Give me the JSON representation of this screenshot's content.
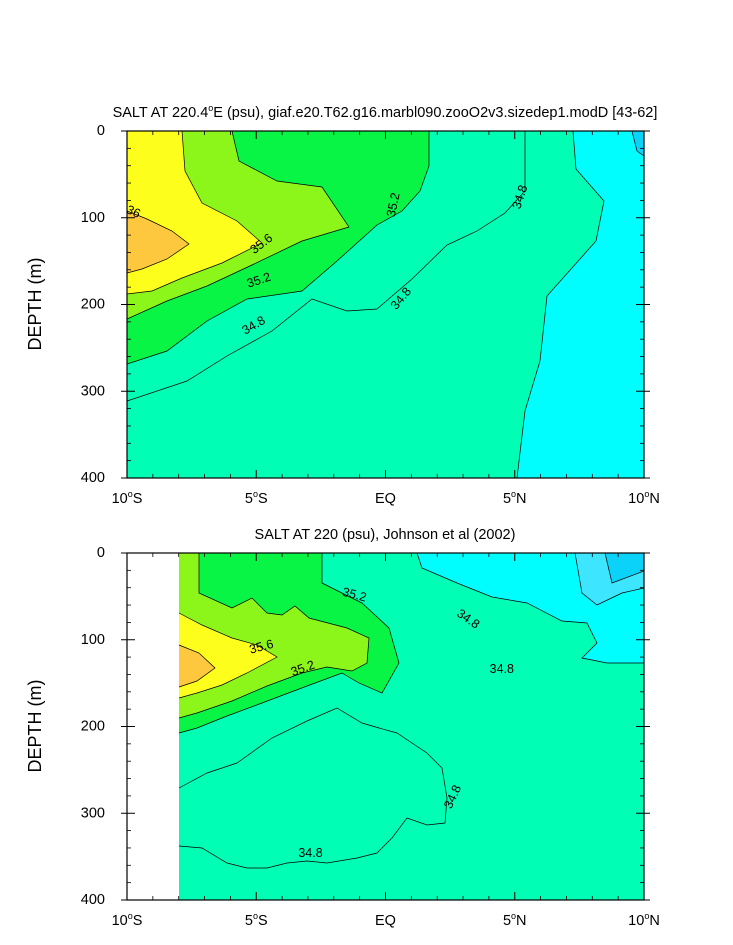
{
  "colors": {
    "c36plus": "#fdc83d",
    "c356_36": "#fefe1d",
    "c352_356": "#8cf51a",
    "c348_352": "#09f546",
    "c344_348": "#00feb4",
    "c_low": "#00fefe",
    "c_lowest": "#3de6fe",
    "c_min": "#0ad2f8"
  },
  "chart_data": [
    {
      "type": "contour",
      "title_prefix": "SALT AT 220.4",
      "title_sup": "o",
      "title_suffix": "E (psu), giaf.e20.T62.g16.marbl090.zooO2v3.sizedep1.modD [43-62]",
      "ylabel": "DEPTH (m)",
      "xlim": [
        -10,
        10
      ],
      "ylim": [
        0,
        400
      ],
      "y_inverted": true,
      "x_ticks": [
        {
          "value": -10,
          "num": "10",
          "sup": "o",
          "hem": "S"
        },
        {
          "value": -5,
          "num": "5",
          "sup": "o",
          "hem": "S"
        },
        {
          "value": 0,
          "num": "EQ",
          "sup": "",
          "hem": ""
        },
        {
          "value": 5,
          "num": "5",
          "sup": "o",
          "hem": "N"
        },
        {
          "value": 10,
          "num": "10",
          "sup": "o",
          "hem": "N"
        }
      ],
      "y_ticks": [
        "0",
        "100",
        "200",
        "300",
        "400"
      ],
      "contour_labels": [
        {
          "text": "36",
          "x": -9.75,
          "y": 93,
          "angle": 25
        },
        {
          "text": "35.6",
          "x": -4.8,
          "y": 130,
          "angle": -38
        },
        {
          "text": "35.2",
          "x": -4.9,
          "y": 172,
          "angle": -18
        },
        {
          "text": "35.2",
          "x": 0.3,
          "y": 85,
          "angle": -78
        },
        {
          "text": "34.8",
          "x": -5.1,
          "y": 224,
          "angle": -30
        },
        {
          "text": "34.8",
          "x": 0.6,
          "y": 193,
          "angle": -50
        },
        {
          "text": "34.8",
          "x": 5.2,
          "y": 76,
          "angle": -72
        }
      ]
    },
    {
      "type": "contour",
      "title_prefix": "SALT AT 220 (psu), Johnson et al (2002)",
      "title_sup": "",
      "title_suffix": "",
      "ylabel": "DEPTH (m)",
      "xlim": [
        -10,
        10
      ],
      "ylim": [
        0,
        400
      ],
      "y_inverted": true,
      "x_ticks": [
        {
          "value": -10,
          "num": "10",
          "sup": "o",
          "hem": "S"
        },
        {
          "value": -5,
          "num": "5",
          "sup": "o",
          "hem": "S"
        },
        {
          "value": 0,
          "num": "EQ",
          "sup": "",
          "hem": ""
        },
        {
          "value": 5,
          "num": "5",
          "sup": "o",
          "hem": "N"
        },
        {
          "value": 10,
          "num": "10",
          "sup": "o",
          "hem": "N"
        }
      ],
      "y_ticks": [
        "0",
        "100",
        "200",
        "300",
        "400"
      ],
      "contour_labels": [
        {
          "text": "35.2",
          "x": -1.2,
          "y": 48,
          "angle": 15
        },
        {
          "text": "35.6",
          "x": -4.8,
          "y": 108,
          "angle": -15
        },
        {
          "text": "35.2",
          "x": -3.2,
          "y": 133,
          "angle": -20
        },
        {
          "text": "34.8",
          "x": 3.2,
          "y": 76,
          "angle": 35
        },
        {
          "text": "34.8",
          "x": 4.5,
          "y": 134,
          "angle": 0
        },
        {
          "text": "34.8",
          "x": 2.6,
          "y": 281,
          "angle": -65
        },
        {
          "text": "34.8",
          "x": -2.9,
          "y": 346,
          "angle": 0
        }
      ]
    }
  ]
}
